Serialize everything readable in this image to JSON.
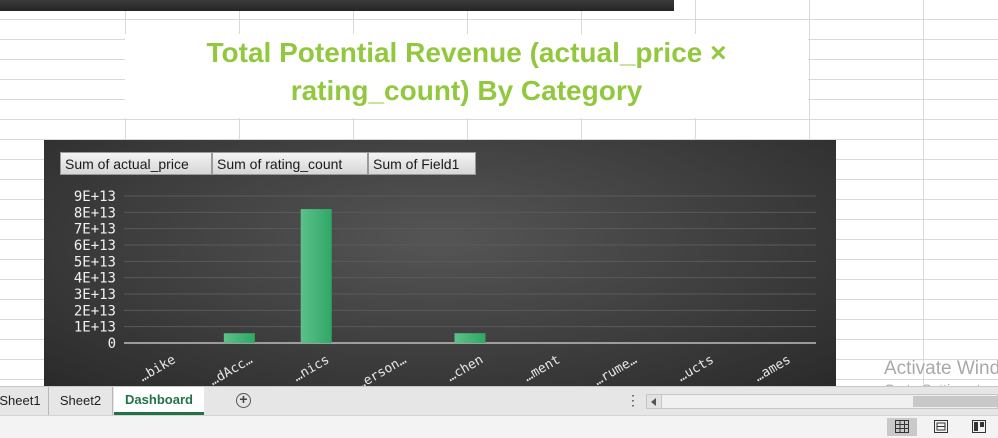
{
  "chart_title": {
    "line1": "Total Potential Revenue (actual_price ×",
    "line2": "rating_count) By Category"
  },
  "field_buttons": [
    "Sum of actual_price",
    "Sum of rating_count",
    "Sum of Field1"
  ],
  "chart_data": {
    "type": "bar",
    "title": "Total Potential Revenue (actual_price × rating_count) By Category",
    "categories": [
      "…bike",
      "…dAcc…",
      "…nics",
      "…erson…",
      "…chen",
      "…ment",
      "…rume…",
      "…ucts",
      "…ames"
    ],
    "series": [
      {
        "values": [
          0,
          6000000000000,
          82000000000000,
          0,
          6000000000000,
          0,
          0,
          0,
          0
        ],
        "color": "#2ea866"
      }
    ],
    "ylim": [
      0,
      90000000000000
    ],
    "yticks": [
      "9E+13",
      "8E+13",
      "7E+13",
      "6E+13",
      "5E+13",
      "4E+13",
      "3E+13",
      "2E+13",
      "1E+13",
      "0"
    ],
    "grid": true,
    "xlabel": "",
    "ylabel": ""
  },
  "sheet_tabs": [
    "Sheet1",
    "Sheet2",
    "Dashboard"
  ],
  "active_tab": "Dashboard",
  "watermark": {
    "line1": "Activate Wind",
    "line2": "Go to Settings to"
  },
  "icons": {
    "add_sheet": "plus-circle-icon",
    "normal_view": "normal-view-icon",
    "page_layout": "page-layout-icon",
    "page_break": "page-break-preview-icon"
  },
  "colors": {
    "title": "#92c83e",
    "bar": "#2ea866",
    "active_tab": "#217346"
  }
}
